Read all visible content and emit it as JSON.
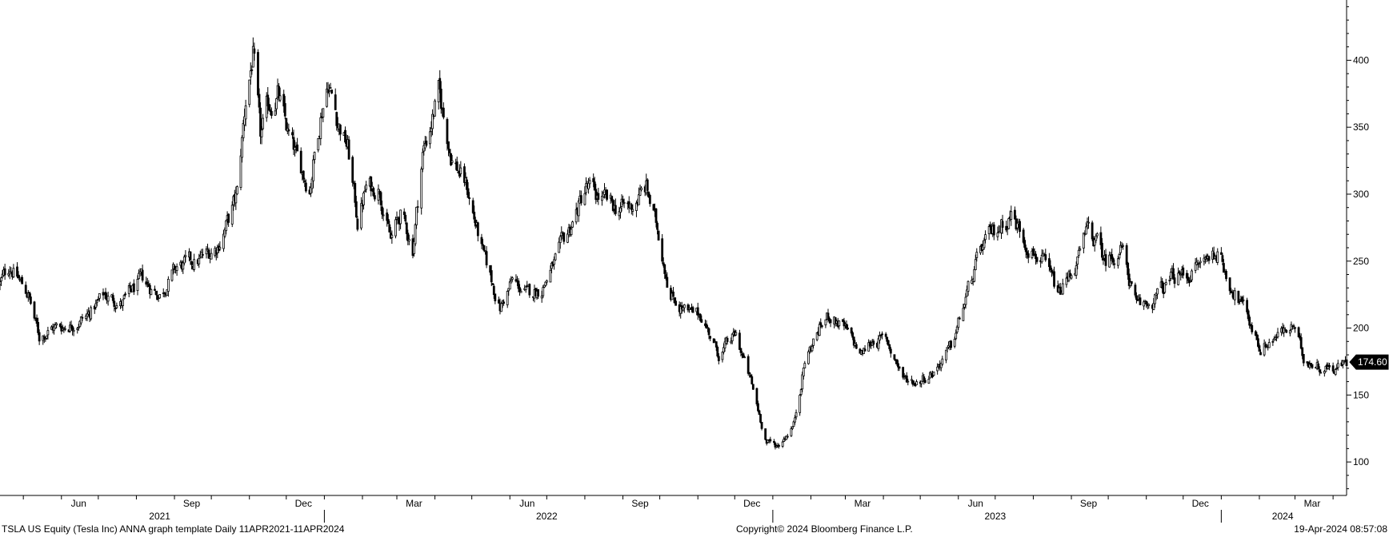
{
  "chart_data": {
    "type": "candlestick",
    "ylim": [
      75,
      445
    ],
    "y_ticks": [
      100,
      150,
      200,
      250,
      300,
      350,
      400
    ],
    "y_axis_side": "right",
    "grid": false,
    "last_price": {
      "label": "174.60",
      "value": 174.6
    },
    "x_range": [
      "2021-04-12",
      "2024-04-12"
    ],
    "month_ticks": [
      {
        "label": "Jun",
        "date": "2021-06-15"
      },
      {
        "label": "Sep",
        "date": "2021-09-15"
      },
      {
        "label": "Dec",
        "date": "2021-12-15"
      },
      {
        "label": "Mar",
        "date": "2022-03-15"
      },
      {
        "label": "Jun",
        "date": "2022-06-15"
      },
      {
        "label": "Sep",
        "date": "2022-09-15"
      },
      {
        "label": "Dec",
        "date": "2022-12-15"
      },
      {
        "label": "Mar",
        "date": "2023-03-15"
      },
      {
        "label": "Jun",
        "date": "2023-06-15"
      },
      {
        "label": "Sep",
        "date": "2023-09-15"
      },
      {
        "label": "Dec",
        "date": "2023-12-15"
      },
      {
        "label": "Mar",
        "date": "2024-03-15"
      }
    ],
    "year_labels": [
      {
        "label": "2021",
        "date": "2021-08-20"
      },
      {
        "label": "2022",
        "date": "2022-07-01"
      },
      {
        "label": "2023",
        "date": "2023-07-01"
      },
      {
        "label": "2024",
        "date": "2024-02-20"
      }
    ],
    "year_dividers": [
      "2022-01-01",
      "2023-01-01",
      "2024-01-01"
    ],
    "price_path": [
      [
        "2021-04-12",
        233
      ],
      [
        "2021-04-20",
        247
      ],
      [
        "2021-05-05",
        225
      ],
      [
        "2021-05-14",
        193
      ],
      [
        "2021-05-24",
        200
      ],
      [
        "2021-06-07",
        202
      ],
      [
        "2021-06-21",
        208
      ],
      [
        "2021-07-06",
        225
      ],
      [
        "2021-07-20",
        218
      ],
      [
        "2021-08-05",
        236
      ],
      [
        "2021-08-20",
        225
      ],
      [
        "2021-09-03",
        245
      ],
      [
        "2021-09-20",
        250
      ],
      [
        "2021-10-05",
        260
      ],
      [
        "2021-10-15",
        280
      ],
      [
        "2021-10-22",
        300
      ],
      [
        "2021-10-29",
        370
      ],
      [
        "2021-11-04",
        405
      ],
      [
        "2021-11-10",
        340
      ],
      [
        "2021-11-16",
        365
      ],
      [
        "2021-11-24",
        375
      ],
      [
        "2021-12-02",
        345
      ],
      [
        "2021-12-10",
        325
      ],
      [
        "2021-12-20",
        305
      ],
      [
        "2021-12-29",
        360
      ],
      [
        "2022-01-04",
        385
      ],
      [
        "2022-01-12",
        355
      ],
      [
        "2022-01-20",
        335
      ],
      [
        "2022-01-28",
        280
      ],
      [
        "2022-02-04",
        305
      ],
      [
        "2022-02-15",
        305
      ],
      [
        "2022-02-24",
        265
      ],
      [
        "2022-03-04",
        285
      ],
      [
        "2022-03-14",
        260
      ],
      [
        "2022-03-22",
        330
      ],
      [
        "2022-04-04",
        375
      ],
      [
        "2022-04-14",
        330
      ],
      [
        "2022-04-27",
        305
      ],
      [
        "2022-05-10",
        255
      ],
      [
        "2022-05-24",
        215
      ],
      [
        "2022-06-03",
        235
      ],
      [
        "2022-06-15",
        225
      ],
      [
        "2022-06-27",
        230
      ],
      [
        "2022-07-08",
        250
      ],
      [
        "2022-07-20",
        275
      ],
      [
        "2022-08-02",
        305
      ],
      [
        "2022-08-16",
        295
      ],
      [
        "2022-08-26",
        290
      ],
      [
        "2022-09-07",
        290
      ],
      [
        "2022-09-20",
        305
      ],
      [
        "2022-09-30",
        270
      ],
      [
        "2022-10-10",
        225
      ],
      [
        "2022-10-24",
        210
      ],
      [
        "2022-11-04",
        210
      ],
      [
        "2022-11-18",
        180
      ],
      [
        "2022-12-02",
        195
      ],
      [
        "2022-12-14",
        160
      ],
      [
        "2022-12-27",
        115
      ],
      [
        "2023-01-05",
        112
      ],
      [
        "2023-01-18",
        128
      ],
      [
        "2023-01-27",
        175
      ],
      [
        "2023-02-08",
        200
      ],
      [
        "2023-02-16",
        210
      ],
      [
        "2023-02-28",
        200
      ],
      [
        "2023-03-14",
        180
      ],
      [
        "2023-03-24",
        192
      ],
      [
        "2023-04-04",
        190
      ],
      [
        "2023-04-18",
        162
      ],
      [
        "2023-04-28",
        160
      ],
      [
        "2023-05-12",
        168
      ],
      [
        "2023-05-26",
        185
      ],
      [
        "2023-06-08",
        225
      ],
      [
        "2023-06-20",
        260
      ],
      [
        "2023-07-03",
        275
      ],
      [
        "2023-07-14",
        285
      ],
      [
        "2023-07-26",
        265
      ],
      [
        "2023-08-08",
        250
      ],
      [
        "2023-08-22",
        225
      ],
      [
        "2023-09-06",
        250
      ],
      [
        "2023-09-15",
        275
      ],
      [
        "2023-09-29",
        250
      ],
      [
        "2023-10-12",
        260
      ],
      [
        "2023-10-24",
        215
      ],
      [
        "2023-11-06",
        220
      ],
      [
        "2023-11-22",
        238
      ],
      [
        "2023-12-05",
        240
      ],
      [
        "2023-12-18",
        250
      ],
      [
        "2023-12-28",
        258
      ],
      [
        "2024-01-10",
        230
      ],
      [
        "2024-01-22",
        210
      ],
      [
        "2024-02-02",
        185
      ],
      [
        "2024-02-16",
        195
      ],
      [
        "2024-02-29",
        200
      ],
      [
        "2024-03-08",
        178
      ],
      [
        "2024-03-20",
        172
      ],
      [
        "2024-04-01",
        170
      ],
      [
        "2024-04-11",
        174
      ]
    ]
  },
  "footer": {
    "left": "TSLA US Equity (Tesla Inc) ANNA  graph template  Daily 11APR2021-11APR2024",
    "center": "Copyright© 2024 Bloomberg Finance L.P.",
    "right": "19-Apr-2024 08:57:08"
  }
}
